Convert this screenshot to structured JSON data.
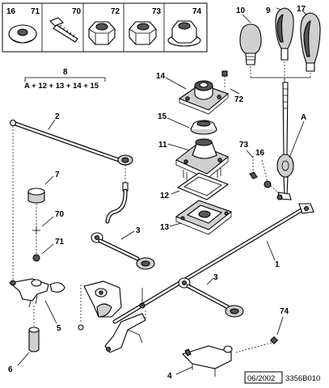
{
  "top_parts": [
    {
      "number": "16",
      "name": "washer"
    },
    {
      "number": "71",
      "name": "washer-small"
    },
    {
      "number": "70",
      "name": "bolt"
    },
    {
      "number": "72",
      "name": "nut"
    },
    {
      "number": "73",
      "name": "nut"
    },
    {
      "number": "74",
      "name": "nut"
    }
  ],
  "callouts": {
    "c1": "1",
    "c2": "2",
    "c3a": "3",
    "c3b": "3",
    "c4": "4",
    "c5": "5",
    "c6": "6",
    "c7": "7",
    "c8": "8",
    "c9": "9",
    "c10": "10",
    "c11": "11",
    "c12": "12",
    "c13": "13",
    "c14": "14",
    "c15": "15",
    "c16": "16",
    "c17": "17",
    "c70": "70",
    "c71": "71",
    "c72": "72",
    "c73": "73",
    "c74": "74",
    "cA": "A"
  },
  "formula": {
    "label": "8",
    "text": "A + 12 + 13 + 14 + 15"
  },
  "footer": {
    "date": "06/2002",
    "reference": "3356B010"
  }
}
